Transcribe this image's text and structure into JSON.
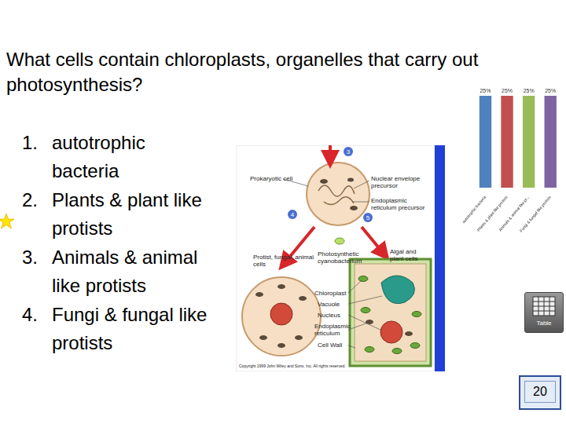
{
  "question": "What cells contain chloroplasts, organelles that carry out photosynthesis?",
  "options": [
    {
      "label": "1.",
      "text": "autotrophic bacteria"
    },
    {
      "label": "2.",
      "text": "Plants & plant like protists"
    },
    {
      "label": "3.",
      "text": "Animals & animal like protists"
    },
    {
      "label": "4.",
      "text": "Fungi & fungal like protists"
    }
  ],
  "diagram": {
    "labels": {
      "prokaryotic_cell": "Prokaryotic cell",
      "nuclear_envelope": "Nuclear envelope precursor",
      "er_precursor": "Endoplasmic reticulum precursor",
      "protist_cells": "Protist, fungal, animal cells",
      "cyanobacterium": "Photosynthetic cyanobacterium",
      "plant_cells": "Algal and plant cells",
      "chloroplast": "Chloroplast",
      "vacuole": "Vacuole",
      "nucleus": "Nucleus",
      "er": "Endoplasmic reticulum",
      "cell_wall": "Cell Wall",
      "copyright": "Copyright 1999 John Wiley and Sons, Inc. All rights reserved."
    },
    "steps": [
      3,
      4,
      5
    ]
  },
  "chart_data": {
    "type": "bar",
    "categories": [
      "autotrophic bacteria",
      "Plants & plant like protists",
      "Animals & animal like pr...",
      "Fungi & fungal like protists"
    ],
    "values": [
      25,
      25,
      25,
      25
    ],
    "value_labels": [
      "25%",
      "25%",
      "25%",
      "25%"
    ],
    "colors": [
      "#4f81bd",
      "#c0504d",
      "#9bbb59",
      "#8064a2"
    ],
    "ylim": [
      0,
      25
    ],
    "grid": false,
    "data_labels": true,
    "tick_labels": "x"
  },
  "table_button": "Table",
  "countdown": 20
}
